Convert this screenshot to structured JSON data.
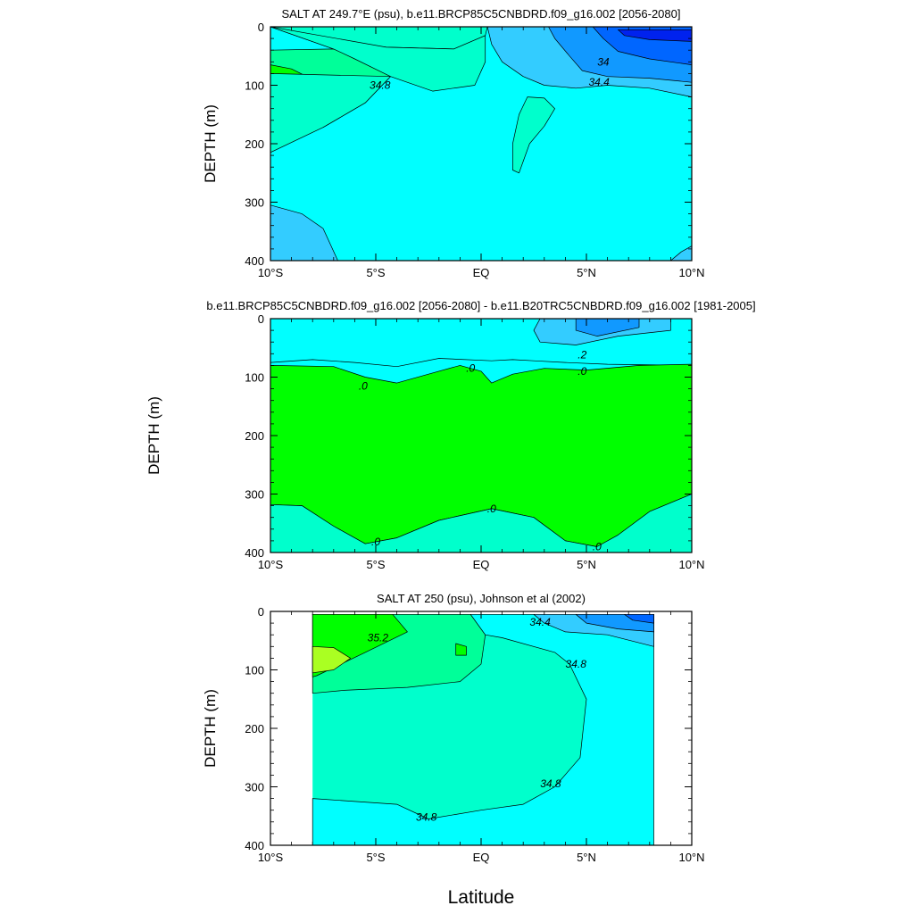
{
  "figure": {
    "xlabel": "Latitude"
  },
  "colors": {
    "cyan": "#00ffff",
    "aquamarine": "#00ffcc",
    "mint": "#00ff99",
    "green": "#00ff00",
    "yellow_green": "#aaff22",
    "light_blue": "#33ccff",
    "sky_blue": "#1199ff",
    "blue": "#0066ff",
    "deep_blue": "#0022ee",
    "faint_cyan": "#55ffff"
  },
  "chart_data": [
    {
      "type": "contour",
      "title": "SALT AT 249.7°E (psu), b.e11.BRCP85C5CNBDRD.f09_g16.002 [2056-2080]",
      "xlabel": "",
      "ylabel": "DEPTH (m)",
      "xlim": [
        -10,
        10
      ],
      "ylim": [
        400,
        0
      ],
      "x_ticks": [
        "10°S",
        "5°S",
        "EQ",
        "5°N",
        "10°N"
      ],
      "y_ticks": [
        "0",
        "100",
        "200",
        "300",
        "400"
      ],
      "contour_labels": [
        {
          "text": "34.8",
          "x": -4.8,
          "y": 100
        },
        {
          "text": "34",
          "x": 5.8,
          "y": 60
        },
        {
          "text": "34.4",
          "x": 5.6,
          "y": 95
        }
      ],
      "regions": [
        {
          "color": "mint",
          "pts": [
            [
              -10,
              40
            ],
            [
              -7,
              38
            ],
            [
              -5.5,
              55
            ],
            [
              -4.3,
              85
            ],
            [
              -5.5,
              130
            ],
            [
              -7.5,
              172
            ],
            [
              -9,
              185
            ],
            [
              -10,
              190
            ]
          ]
        },
        {
          "color": "green",
          "pts": [
            [
              -10,
              65
            ],
            [
              -9,
              72
            ],
            [
              -8,
              90
            ],
            [
              -7.8,
              105
            ],
            [
              -8.5,
              122
            ],
            [
              -9.5,
              133
            ],
            [
              -10,
              135
            ]
          ]
        },
        {
          "color": "yellow_green",
          "pts": [
            [
              -10,
              85
            ],
            [
              -9.5,
              92
            ],
            [
              -9.2,
              106
            ],
            [
              -9.6,
              118
            ],
            [
              -10,
              120
            ]
          ]
        },
        {
          "color": "aquamarine",
          "pts": [
            [
              -10,
              0
            ],
            [
              0.3,
              0
            ],
            [
              0.2,
              15
            ],
            [
              -1.3,
              38
            ],
            [
              -4.5,
              35
            ],
            [
              -6.5,
              28
            ],
            [
              -7,
              38
            ]
          ]
        },
        {
          "color": "aquamarine",
          "pts": [
            [
              -10,
              0
            ],
            [
              -7,
              38
            ],
            [
              -6,
              55
            ],
            [
              -4.3,
              85
            ],
            [
              -2.3,
              110
            ],
            [
              -0.3,
              100
            ],
            [
              0.2,
              60
            ],
            [
              0.2,
              15
            ],
            [
              -1.3,
              38
            ],
            [
              -4.5,
              35
            ]
          ]
        },
        {
          "color": "aquamarine",
          "pts": [
            [
              -10,
              80
            ],
            [
              -4.3,
              85
            ],
            [
              -5.5,
              130
            ],
            [
              -7.5,
              172
            ],
            [
              -10,
              215
            ]
          ]
        },
        {
          "color": "aquamarine",
          "pts": [
            [
              2.2,
              120
            ],
            [
              3,
              122
            ],
            [
              3.5,
              140
            ],
            [
              3,
              170
            ],
            [
              2.3,
              200
            ],
            [
              1.8,
              250
            ],
            [
              1.5,
              245
            ],
            [
              1.5,
              200
            ],
            [
              1.8,
              150
            ]
          ]
        },
        {
          "color": "light_blue",
          "pts": [
            [
              0.3,
              0
            ],
            [
              10,
              0
            ],
            [
              10,
              120
            ],
            [
              8,
              105
            ],
            [
              6,
              100
            ],
            [
              4.5,
              105
            ],
            [
              3,
              100
            ],
            [
              2,
              85
            ],
            [
              1,
              60
            ],
            [
              0.5,
              30
            ]
          ]
        },
        {
          "color": "sky_blue",
          "pts": [
            [
              3.2,
              0
            ],
            [
              10,
              0
            ],
            [
              10,
              95
            ],
            [
              8,
              88
            ],
            [
              6,
              85
            ],
            [
              4.8,
              75
            ],
            [
              4.2,
              50
            ],
            [
              3.5,
              20
            ]
          ]
        },
        {
          "color": "blue",
          "pts": [
            [
              5.3,
              0
            ],
            [
              10,
              0
            ],
            [
              10,
              65
            ],
            [
              8,
              55
            ],
            [
              6.5,
              42
            ],
            [
              5.8,
              20
            ]
          ]
        },
        {
          "color": "deep_blue",
          "pts": [
            [
              6.5,
              5
            ],
            [
              10,
              5
            ],
            [
              10,
              25
            ],
            [
              8,
              22
            ],
            [
              6.8,
              15
            ]
          ]
        },
        {
          "color": "light_blue",
          "pts": [
            [
              -10,
              305
            ],
            [
              -8.5,
              320
            ],
            [
              -7.5,
              345
            ],
            [
              -6.8,
              400
            ],
            [
              -10,
              400
            ]
          ]
        },
        {
          "color": "light_blue",
          "pts": [
            [
              10,
              375
            ],
            [
              9.5,
              385
            ],
            [
              9,
              400
            ],
            [
              10,
              400
            ]
          ]
        }
      ]
    },
    {
      "type": "contour",
      "title": "b.e11.BRCP85C5CNBDRD.f09_g16.002 [2056-2080] - b.e11.B20TRC5CNBDRD.f09_g16.002 [1981-2005]",
      "xlabel": "",
      "ylabel": "DEPTH (m)",
      "xlim": [
        -10,
        10
      ],
      "ylim": [
        400,
        0
      ],
      "x_ticks": [
        "10°S",
        "5°S",
        "EQ",
        "5°N",
        "10°N"
      ],
      "y_ticks": [
        "0",
        "100",
        "200",
        "300",
        "400"
      ],
      "contour_labels": [
        {
          "text": ".0",
          "x": -5.6,
          "y": 115
        },
        {
          "text": ".0",
          "x": -0.5,
          "y": 85
        },
        {
          "text": ".0",
          "x": 4.8,
          "y": 90
        },
        {
          "text": ".2",
          "x": 4.8,
          "y": 62
        },
        {
          "text": ".0",
          "x": 0.5,
          "y": 325
        },
        {
          "text": ".0",
          "x": -5,
          "y": 382
        },
        {
          "text": ".0",
          "x": 5.5,
          "y": 390
        }
      ],
      "regions": [
        {
          "color": "cyan",
          "pts": [
            [
              -10,
              0
            ],
            [
              10,
              0
            ],
            [
              10,
              80
            ],
            [
              6,
              78
            ],
            [
              4,
              75
            ],
            [
              2.5,
              72
            ],
            [
              1.5,
              70
            ],
            [
              0.5,
              72
            ],
            [
              -2,
              68
            ],
            [
              -4,
              82
            ],
            [
              -6,
              75
            ],
            [
              -8,
              70
            ],
            [
              -10,
              75
            ]
          ]
        },
        {
          "color": "light_blue",
          "pts": [
            [
              2.8,
              0
            ],
            [
              9,
              0
            ],
            [
              9,
              20
            ],
            [
              6.5,
              30
            ],
            [
              4.5,
              45
            ],
            [
              2.8,
              40
            ],
            [
              2.5,
              20
            ]
          ]
        },
        {
          "color": "sky_blue",
          "pts": [
            [
              4.5,
              0
            ],
            [
              7.5,
              0
            ],
            [
              7.5,
              15
            ],
            [
              5.5,
              30
            ],
            [
              4.5,
              20
            ]
          ]
        },
        {
          "color": "green",
          "pts": [
            [
              -10,
              80
            ],
            [
              -7,
              82
            ],
            [
              -5.5,
              100
            ],
            [
              -4,
              110
            ],
            [
              -2.5,
              95
            ],
            [
              -1,
              80
            ],
            [
              0,
              90
            ],
            [
              0.5,
              110
            ],
            [
              1.5,
              95
            ],
            [
              3,
              85
            ],
            [
              5,
              88
            ],
            [
              7.5,
              80
            ],
            [
              10,
              78
            ],
            [
              10,
              300
            ],
            [
              8,
              330
            ],
            [
              6.5,
              370
            ],
            [
              5.5,
              390
            ],
            [
              4,
              380
            ],
            [
              2.5,
              340
            ],
            [
              0.5,
              325
            ],
            [
              -2,
              345
            ],
            [
              -4,
              375
            ],
            [
              -5.5,
              385
            ],
            [
              -7,
              355
            ],
            [
              -8.5,
              320
            ],
            [
              -10,
              318
            ]
          ]
        },
        {
          "color": "aquamarine",
          "pts": [
            [
              -10,
              318
            ],
            [
              -8.5,
              320
            ],
            [
              -7,
              355
            ],
            [
              -5.5,
              385
            ],
            [
              -4,
              375
            ],
            [
              -2,
              345
            ],
            [
              0.5,
              325
            ],
            [
              2.5,
              340
            ],
            [
              4,
              380
            ],
            [
              5.5,
              390
            ],
            [
              6.5,
              370
            ],
            [
              8,
              330
            ],
            [
              10,
              300
            ],
            [
              10,
              400
            ],
            [
              -10,
              400
            ]
          ]
        }
      ]
    },
    {
      "type": "contour",
      "title": "SALT AT 250 (psu), Johnson et al (2002)",
      "xlabel": "",
      "ylabel": "DEPTH (m)",
      "xlim": [
        -10,
        10
      ],
      "ylim": [
        400,
        0
      ],
      "x_ticks": [
        "10°S",
        "5°S",
        "EQ",
        "5°N",
        "10°N"
      ],
      "y_ticks": [
        "0",
        "100",
        "200",
        "300",
        "400"
      ],
      "data_xlim": [
        -8,
        8.2
      ],
      "data_ylim": [
        5,
        400
      ],
      "contour_labels": [
        {
          "text": "35.2",
          "x": -4.9,
          "y": 45
        },
        {
          "text": "34.4",
          "x": 2.8,
          "y": 18
        },
        {
          "text": "34.8",
          "x": 4.5,
          "y": 90
        },
        {
          "text": "34.8",
          "x": 3.3,
          "y": 295
        },
        {
          "text": "34.8",
          "x": -2.6,
          "y": 352
        }
      ],
      "regions": [
        {
          "color": "mint",
          "pts": [
            [
              -8,
              5
            ],
            [
              -0.5,
              5
            ],
            [
              0.2,
              40
            ],
            [
              0,
              90
            ],
            [
              -1,
              120
            ],
            [
              -3.5,
              130
            ],
            [
              -6.5,
              135
            ],
            [
              -8,
              140
            ]
          ]
        },
        {
          "color": "green",
          "pts": [
            [
              -8,
              5
            ],
            [
              -4.2,
              5
            ],
            [
              -3.5,
              35
            ],
            [
              -5.5,
              70
            ],
            [
              -7.8,
              110
            ],
            [
              -8,
              112
            ]
          ]
        },
        {
          "color": "yellow_green",
          "pts": [
            [
              -8,
              60
            ],
            [
              -7,
              62
            ],
            [
              -6.2,
              80
            ],
            [
              -7,
              100
            ],
            [
              -8,
              105
            ]
          ]
        },
        {
          "color": "green",
          "pts": [
            [
              -1.2,
              55
            ],
            [
              -0.7,
              60
            ],
            [
              -0.7,
              75
            ],
            [
              -1.2,
              75
            ]
          ]
        },
        {
          "color": "mint",
          "pts": [
            [
              7.2,
              115
            ],
            [
              8,
              105
            ],
            [
              8.1,
              140
            ],
            [
              7,
              145
            ],
            [
              6.5,
              130
            ]
          ]
        },
        {
          "color": "cyan",
          "pts": [
            [
              -0.5,
              5
            ],
            [
              8.2,
              5
            ],
            [
              8.2,
              400
            ],
            [
              -8,
              400
            ],
            [
              -8,
              320
            ],
            [
              -6,
              325
            ],
            [
              -4,
              330
            ],
            [
              -2.5,
              355
            ],
            [
              0,
              340
            ],
            [
              2,
              330
            ],
            [
              3.5,
              300
            ],
            [
              4.7,
              250
            ],
            [
              5,
              150
            ],
            [
              4.2,
              90
            ],
            [
              3.5,
              70
            ],
            [
              1,
              45
            ],
            [
              0.2,
              40
            ]
          ]
        },
        {
          "color": "light_blue",
          "pts": [
            [
              2.5,
              5
            ],
            [
              8.2,
              5
            ],
            [
              8.2,
              60
            ],
            [
              6,
              40
            ],
            [
              4,
              35
            ],
            [
              3,
              20
            ]
          ]
        },
        {
          "color": "sky_blue",
          "pts": [
            [
              4.5,
              5
            ],
            [
              8.2,
              5
            ],
            [
              8.2,
              35
            ],
            [
              6.5,
              30
            ],
            [
              5,
              20
            ]
          ]
        },
        {
          "color": "blue",
          "pts": [
            [
              6.8,
              5
            ],
            [
              8.2,
              5
            ],
            [
              8.2,
              20
            ],
            [
              7.2,
              15
            ]
          ]
        }
      ]
    }
  ]
}
